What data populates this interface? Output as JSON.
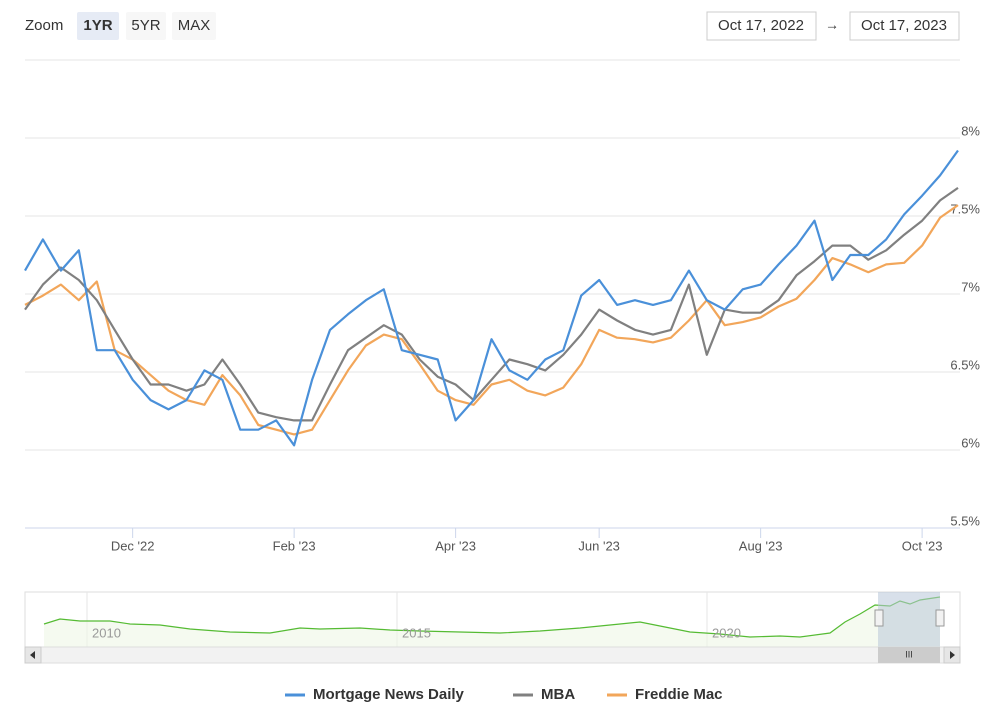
{
  "zoom": {
    "label": "Zoom",
    "buttons": [
      "1YR",
      "5YR",
      "MAX"
    ],
    "selected": 0
  },
  "range": {
    "from": "Oct 17, 2022",
    "separator": "→",
    "to": "Oct 17, 2023"
  },
  "chart_data": {
    "type": "line",
    "categories": [
      null,
      null,
      null,
      null,
      null,
      null,
      "Dec '22",
      null,
      null,
      null,
      null,
      null,
      null,
      null,
      null,
      "Feb '23",
      null,
      null,
      null,
      null,
      null,
      null,
      null,
      null,
      "Apr '23",
      null,
      null,
      null,
      null,
      null,
      null,
      null,
      "Jun '23",
      null,
      null,
      null,
      null,
      null,
      null,
      null,
      null,
      "Aug '23",
      null,
      null,
      null,
      null,
      null,
      null,
      null,
      null,
      "Oct '23",
      null,
      null
    ],
    "series": [
      {
        "name": "Mortgage News Daily",
        "color": "#4a90d9",
        "values": [
          7.15,
          7.35,
          7.15,
          7.28,
          6.64,
          6.64,
          6.45,
          6.32,
          6.26,
          6.32,
          6.51,
          6.45,
          6.13,
          6.13,
          6.19,
          6.03,
          6.45,
          6.77,
          6.87,
          6.96,
          7.03,
          6.64,
          6.61,
          6.58,
          6.19,
          6.32,
          6.71,
          6.51,
          6.45,
          6.58,
          6.64,
          6.99,
          7.09,
          6.93,
          6.96,
          6.93,
          6.96,
          7.15,
          6.96,
          6.9,
          7.03,
          7.06,
          7.19,
          7.31,
          7.47,
          7.09,
          7.25,
          7.25,
          7.35,
          7.51,
          7.63,
          7.76,
          7.92
        ]
      },
      {
        "name": "MBA",
        "color": "#808080",
        "values": [
          6.9,
          7.06,
          7.17,
          7.09,
          6.96,
          6.77,
          6.58,
          6.42,
          6.42,
          6.38,
          6.42,
          6.58,
          6.42,
          6.24,
          6.21,
          6.19,
          6.19,
          6.42,
          6.64,
          6.72,
          6.8,
          6.74,
          6.58,
          6.47,
          6.42,
          6.32,
          6.45,
          6.58,
          6.55,
          6.51,
          6.61,
          6.74,
          6.9,
          6.83,
          6.77,
          6.74,
          6.77,
          7.06,
          6.61,
          6.9,
          6.88,
          6.88,
          6.96,
          7.12,
          7.21,
          7.31,
          7.31,
          7.22,
          7.28,
          7.38,
          7.47,
          7.6,
          7.68
        ]
      },
      {
        "name": "Freddie Mac",
        "color": "#f2a65a",
        "values": [
          6.93,
          6.99,
          7.06,
          6.96,
          7.08,
          6.64,
          6.58,
          6.48,
          6.38,
          6.32,
          6.29,
          6.48,
          6.35,
          6.16,
          6.13,
          6.1,
          6.13,
          6.32,
          6.51,
          6.67,
          6.74,
          6.71,
          6.55,
          6.38,
          6.32,
          6.29,
          6.42,
          6.45,
          6.38,
          6.35,
          6.4,
          6.55,
          6.77,
          6.72,
          6.71,
          6.69,
          6.72,
          6.83,
          6.96,
          6.8,
          6.82,
          6.85,
          6.92,
          6.97,
          7.09,
          7.23,
          7.19,
          7.14,
          7.19,
          7.2,
          7.31,
          7.49,
          7.57
        ]
      }
    ],
    "ylim": [
      5.5,
      8.5
    ],
    "yticks": [
      {
        "value": 5.5,
        "label": "5.5%"
      },
      {
        "value": 6,
        "label": "6%"
      },
      {
        "value": 6.5,
        "label": "6.5%"
      },
      {
        "value": 7,
        "label": "7%"
      },
      {
        "value": 7.5,
        "label": "7.5%"
      },
      {
        "value": 8,
        "label": "8%"
      }
    ],
    "grid": true,
    "legend": "bottom"
  },
  "navigator": {
    "labels": [
      "2010",
      "2015",
      "2020"
    ],
    "scroll_label": "III"
  }
}
